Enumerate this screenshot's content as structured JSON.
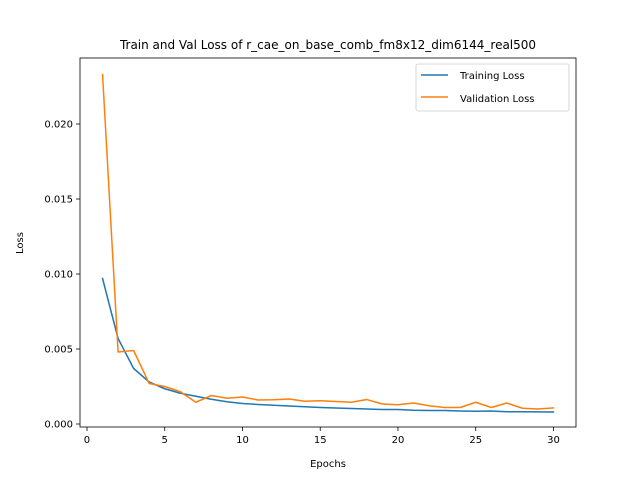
{
  "chart_data": {
    "type": "line",
    "title": "Train and Val Loss of r_cae_on_base_comb_fm8x12_dim6144_real500",
    "xlabel": "Epochs",
    "ylabel": "Loss",
    "xlim": [
      -0.45,
      31.45
    ],
    "ylim": [
      -0.0002,
      0.0244
    ],
    "xticks": [
      0,
      5,
      10,
      15,
      20,
      25,
      30
    ],
    "xtick_labels": [
      "0",
      "5",
      "10",
      "15",
      "20",
      "25",
      "30"
    ],
    "yticks": [
      0.0,
      0.005,
      0.01,
      0.015,
      0.02
    ],
    "ytick_labels": [
      "0.000",
      "0.005",
      "0.010",
      "0.015",
      "0.020"
    ],
    "grid": false,
    "legend_position": "top-right",
    "x": [
      1,
      2,
      3,
      4,
      5,
      6,
      7,
      8,
      9,
      10,
      11,
      12,
      13,
      14,
      15,
      16,
      17,
      18,
      19,
      20,
      21,
      22,
      23,
      24,
      25,
      26,
      27,
      28,
      29,
      30
    ],
    "series": [
      {
        "name": "Training Loss",
        "color": "#1f77b4",
        "values": [
          0.0097,
          0.0057,
          0.0037,
          0.0028,
          0.00235,
          0.00205,
          0.00185,
          0.00165,
          0.00148,
          0.00137,
          0.0013,
          0.00125,
          0.0012,
          0.00115,
          0.0011,
          0.00107,
          0.00103,
          0.001,
          0.00097,
          0.00097,
          0.00092,
          0.0009,
          0.0009,
          0.00087,
          0.00085,
          0.00087,
          0.00082,
          0.00082,
          0.00081,
          0.0008
        ]
      },
      {
        "name": "Validation Loss",
        "color": "#ff7f0e",
        "values": [
          0.0233,
          0.0048,
          0.0049,
          0.0027,
          0.0025,
          0.00215,
          0.00145,
          0.0019,
          0.00172,
          0.0018,
          0.0016,
          0.00162,
          0.00167,
          0.00152,
          0.00155,
          0.0015,
          0.00145,
          0.00163,
          0.00133,
          0.00128,
          0.0014,
          0.00122,
          0.0011,
          0.0011,
          0.00145,
          0.0011,
          0.0014,
          0.00105,
          0.001,
          0.00107
        ]
      }
    ]
  }
}
